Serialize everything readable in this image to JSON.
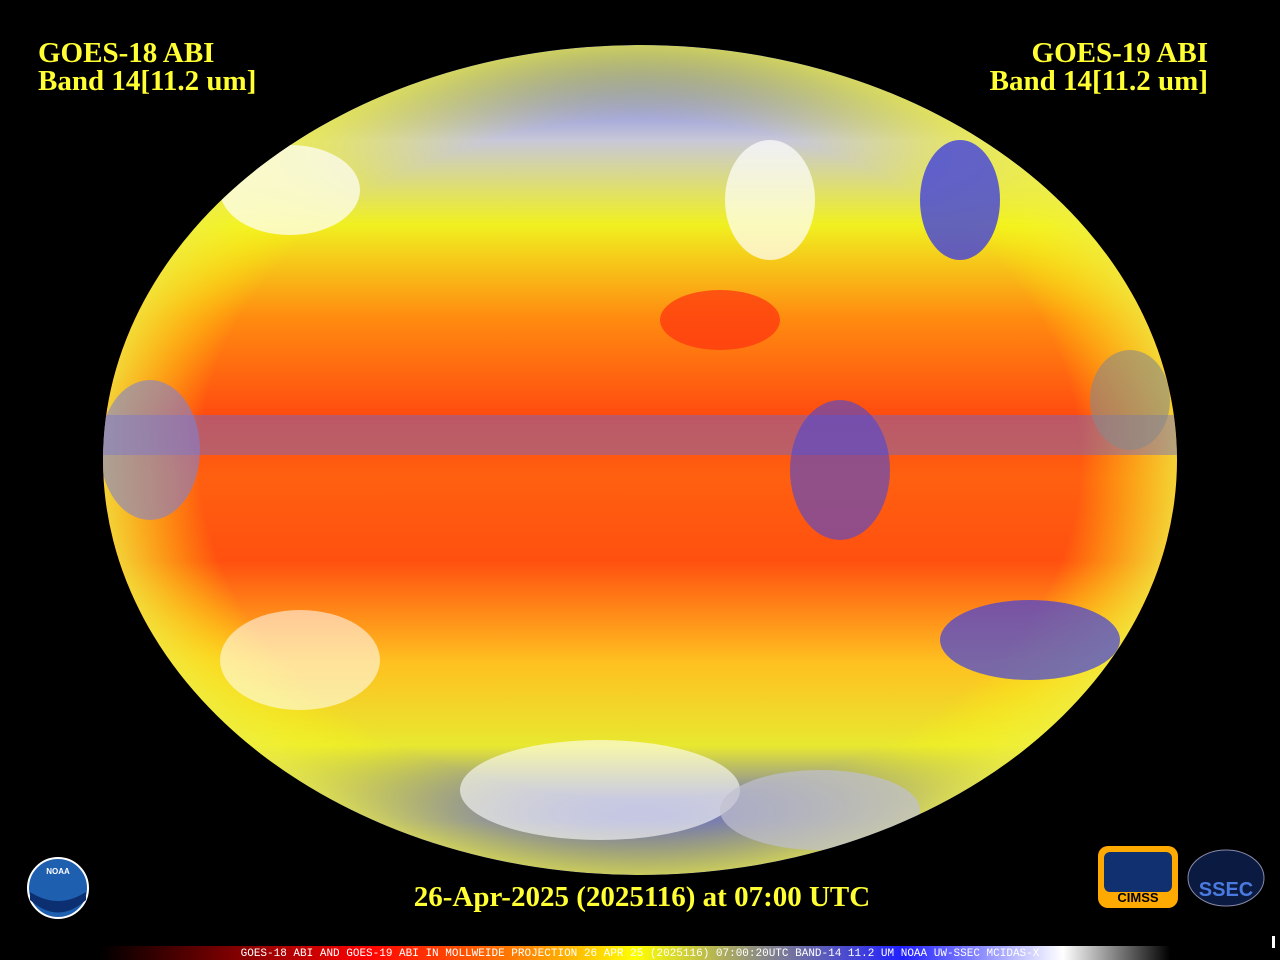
{
  "left_label": {
    "satellite": "GOES-18 ABI",
    "band": "Band 14[11.2 um]"
  },
  "right_label": {
    "satellite": "GOES-19 ABI",
    "band": "Band 14[11.2 um]"
  },
  "timestamp": "26-Apr-2025 (2025116) at 07:00 UTC",
  "footer": "GOES-18 ABI AND GOES-19 ABI IN MOLLWEIDE PROJECTION 26 APR 25 (2025116) 07:00:20UTC BAND-14 11.2 UM NOAA UW-SSEC MCIDAS-X",
  "logos": {
    "noaa": "NOAA",
    "cimss": "CIMSS",
    "ssec": "SSEC"
  }
}
